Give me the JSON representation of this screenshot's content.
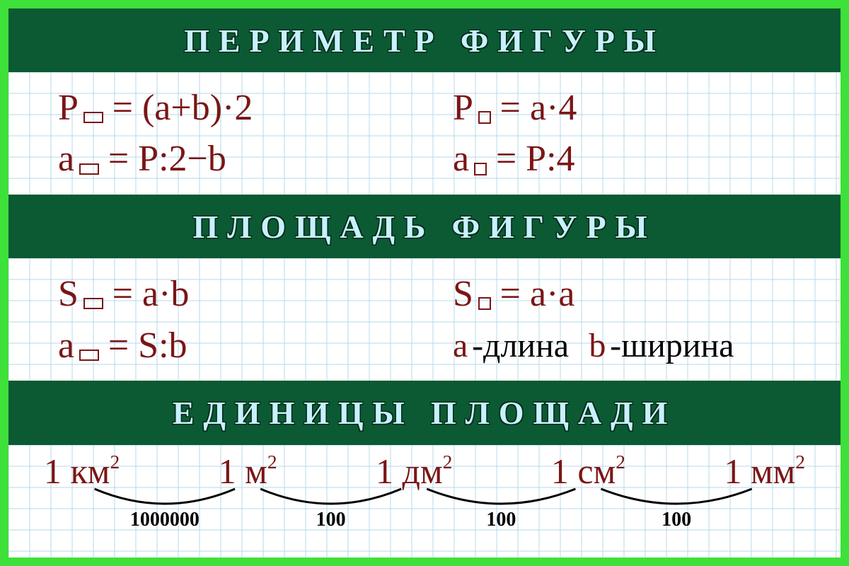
{
  "colors": {
    "frame_outer": "#3ee03a",
    "frame_dark": "#0b5a33",
    "header_bg": "#0b5a33",
    "header_text": "#c8f0ff",
    "header_stroke": "#042a17",
    "grid_bg": "#ffffff",
    "grid_line": "#b7d8ea",
    "formula_text": "#7a1616",
    "legend_black": "#000000",
    "arc_stroke": "#000000",
    "arc_label": "#000000"
  },
  "typography": {
    "header_fontsize": 46,
    "formula_fontsize": 52,
    "unit_fontsize": 50,
    "arc_label_fontsize": 28,
    "legend_fontsize": 48
  },
  "grid": {
    "cell": 30
  },
  "sections": {
    "perimeter": {
      "title": "ПЕРИМЕТР ФИГУРЫ",
      "formulas": {
        "rect_P": {
          "var": "P",
          "shape": "rect",
          "rhs": "= (a+b)·2"
        },
        "square_P": {
          "var": "P",
          "shape": "square",
          "rhs": "= a·4"
        },
        "rect_a": {
          "var": "a",
          "shape": "rect",
          "rhs": "= P:2−b"
        },
        "square_a": {
          "var": "a",
          "shape": "square",
          "rhs": "= P:4"
        }
      }
    },
    "area": {
      "title": "ПЛОЩАДЬ ФИГУРЫ",
      "formulas": {
        "rect_S": {
          "var": "S",
          "shape": "rect",
          "rhs": "= a·b"
        },
        "square_S": {
          "var": "S",
          "shape": "square",
          "rhs": "= a·a"
        },
        "rect_a": {
          "var": "a",
          "shape": "rect",
          "rhs": "= S:b"
        }
      },
      "legend": {
        "a_var": "a",
        "a_text": "-длина",
        "b_var": "b",
        "b_text": "-ширина"
      }
    },
    "units": {
      "title": "ЕДИНИЦЫ ПЛОЩАДИ",
      "items": [
        {
          "prefix": "1 ",
          "unit": "км",
          "exp": "2"
        },
        {
          "prefix": "1 ",
          "unit": "м",
          "exp": "2"
        },
        {
          "prefix": "1 ",
          "unit": "дм",
          "exp": "2"
        },
        {
          "prefix": "1 ",
          "unit": "см",
          "exp": "2"
        },
        {
          "prefix": "1 ",
          "unit": "мм",
          "exp": "2"
        }
      ],
      "conversions": [
        "1000000",
        "100",
        "100",
        "100"
      ]
    }
  }
}
